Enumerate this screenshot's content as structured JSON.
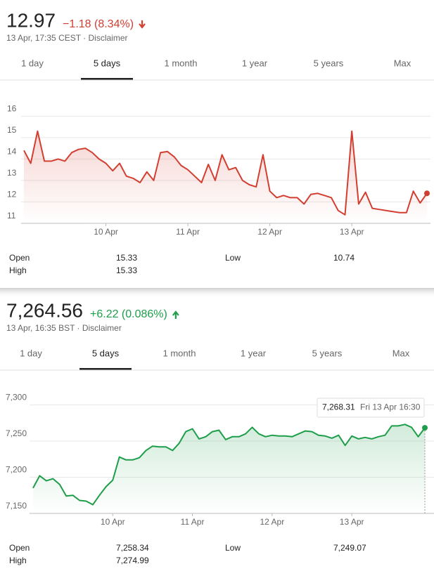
{
  "widgets": [
    {
      "price": "12.97",
      "change": "−1.18 (8.34%)",
      "date": "13 Apr, 17:35 CEST · Disclaimer",
      "tabs": [
        "1 day",
        "5 days",
        "1 month",
        "1 year",
        "5 years",
        "Max"
      ],
      "selected_tab": 1,
      "stats": [
        [
          [
            "Open",
            "15.33"
          ],
          [
            "High",
            "15.33"
          ]
        ],
        [
          [
            "Low",
            "10.74"
          ]
        ]
      ]
    },
    {
      "price": "7,264.56",
      "change": "+6.22 (0.086%)",
      "date": "13 Apr, 16:35 BST · Disclaimer",
      "tabs": [
        "1 day",
        "5 days",
        "1 month",
        "1 year",
        "5 years",
        "Max"
      ],
      "selected_tab": 1,
      "stats": [
        [
          [
            "Open",
            "7,258.34"
          ],
          [
            "High",
            "7,274.99"
          ]
        ],
        [
          [
            "Low",
            "7,249.07"
          ]
        ]
      ]
    }
  ],
  "chart_data": [
    {
      "type": "line",
      "color": "#d23f31",
      "categories": [
        null,
        null,
        null,
        null,
        null,
        null,
        null,
        null,
        null,
        null,
        null,
        null,
        "10 Apr",
        null,
        null,
        null,
        null,
        null,
        null,
        null,
        null,
        null,
        null,
        null,
        "11 Apr",
        null,
        null,
        null,
        null,
        null,
        null,
        null,
        null,
        null,
        null,
        null,
        "12 Apr",
        null,
        null,
        null,
        null,
        null,
        null,
        null,
        null,
        null,
        null,
        null,
        "13 Apr",
        null,
        null,
        null,
        null,
        null,
        null,
        null,
        null,
        null,
        null,
        null
      ],
      "values": [
        14.4,
        13.8,
        15.3,
        13.9,
        13.9,
        14.0,
        13.9,
        14.3,
        14.45,
        14.5,
        14.3,
        14.0,
        13.8,
        13.45,
        13.8,
        13.2,
        13.1,
        12.9,
        13.4,
        13.0,
        14.3,
        14.35,
        14.1,
        13.7,
        13.5,
        13.2,
        12.9,
        13.75,
        13.0,
        14.2,
        13.5,
        13.6,
        13.0,
        12.8,
        12.7,
        14.2,
        12.5,
        12.2,
        12.3,
        12.2,
        12.2,
        11.9,
        12.35,
        12.4,
        12.3,
        12.2,
        11.6,
        11.4,
        15.3,
        11.9,
        12.45,
        11.7,
        11.65,
        11.6,
        11.55,
        11.5,
        11.5,
        12.5,
        11.95,
        12.4
      ],
      "ylim": [
        11,
        16.6
      ],
      "yticks": [
        11,
        12,
        13,
        14,
        15,
        16
      ],
      "grid": true
    },
    {
      "type": "line",
      "color": "#1e9e4a",
      "categories": [
        null,
        null,
        null,
        null,
        null,
        null,
        null,
        null,
        null,
        null,
        null,
        null,
        "10 Apr",
        null,
        null,
        null,
        null,
        null,
        null,
        null,
        null,
        null,
        null,
        null,
        "11 Apr",
        null,
        null,
        null,
        null,
        null,
        null,
        null,
        null,
        null,
        null,
        null,
        "12 Apr",
        null,
        null,
        null,
        null,
        null,
        null,
        null,
        null,
        null,
        null,
        null,
        "13 Apr",
        null,
        null,
        null,
        null,
        null,
        null,
        null,
        null,
        null,
        null,
        null
      ],
      "values": [
        7185,
        7202,
        7195,
        7198,
        7190,
        7174,
        7175,
        7168,
        7167,
        7162,
        7175,
        7187,
        7196,
        7228,
        7224,
        7224,
        7227,
        7237,
        7243,
        7242,
        7242,
        7237,
        7247,
        7263,
        7267,
        7253,
        7256,
        7263,
        7265,
        7252,
        7256,
        7256,
        7260,
        7269,
        7260,
        7256,
        7258,
        7257,
        7257,
        7256,
        7260,
        7264,
        7263,
        7258,
        7257,
        7254,
        7258,
        7244,
        7257,
        7253,
        7255,
        7253,
        7256,
        7258,
        7271,
        7271,
        7273,
        7269,
        7256,
        7268.31
      ],
      "ylim": [
        7150,
        7316
      ],
      "yticks": [
        {
          "value": 7150,
          "label": "7,150"
        },
        {
          "value": 7200,
          "label": "7,200"
        },
        {
          "value": 7250,
          "label": "7,250"
        },
        {
          "value": 7300,
          "label": "7,300"
        }
      ],
      "grid": true,
      "annotation": {
        "value": "7,268.31",
        "time": "Fri 13 Apr 16:30"
      }
    }
  ]
}
